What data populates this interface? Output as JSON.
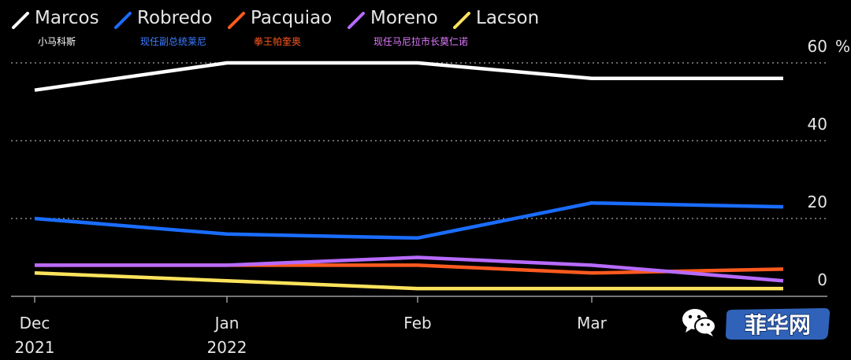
{
  "chart_data": {
    "type": "line",
    "unit": "%",
    "categories": [
      "Dec 2021",
      "Jan 2022",
      "Feb",
      "Mar",
      ""
    ],
    "x_tick_labels": [
      {
        "line1": "Dec",
        "line2": "2021"
      },
      {
        "line1": "Jan",
        "line2": "2022"
      },
      {
        "line1": "Feb",
        "line2": ""
      },
      {
        "line1": "Mar",
        "line2": ""
      }
    ],
    "y_ticks": [
      0,
      20,
      40,
      60
    ],
    "ylim": [
      0,
      60
    ],
    "grid": true,
    "legend_position": "top-left",
    "series": [
      {
        "name": "Marcos",
        "subtitle": "小马科斯",
        "color": "#ffffff",
        "values": [
          53,
          60,
          60,
          56,
          56
        ]
      },
      {
        "name": "Robredo",
        "subtitle": "现任副总统莱尼",
        "color": "#1a6dff",
        "values": [
          20,
          16,
          15,
          24,
          23
        ]
      },
      {
        "name": "Pacquiao",
        "subtitle": "拳王帕奎奥",
        "color": "#ff5a1f",
        "values": [
          8,
          8,
          8,
          6,
          7
        ]
      },
      {
        "name": "Moreno",
        "subtitle": "现任马尼拉市长莫仁诺",
        "color": "#b86bff",
        "values": [
          8,
          8,
          10,
          8,
          4
        ]
      },
      {
        "name": "Lacson",
        "subtitle": "",
        "color": "#fde35c",
        "values": [
          6,
          4,
          2,
          2,
          2
        ]
      }
    ],
    "subtitle_colors": [
      "#ffffff",
      "#3f7dff",
      "#ff5a1f",
      "#e07bff",
      "#fde35c"
    ]
  },
  "watermark": {
    "icon": "wechat-icon",
    "text": "菲华网"
  }
}
